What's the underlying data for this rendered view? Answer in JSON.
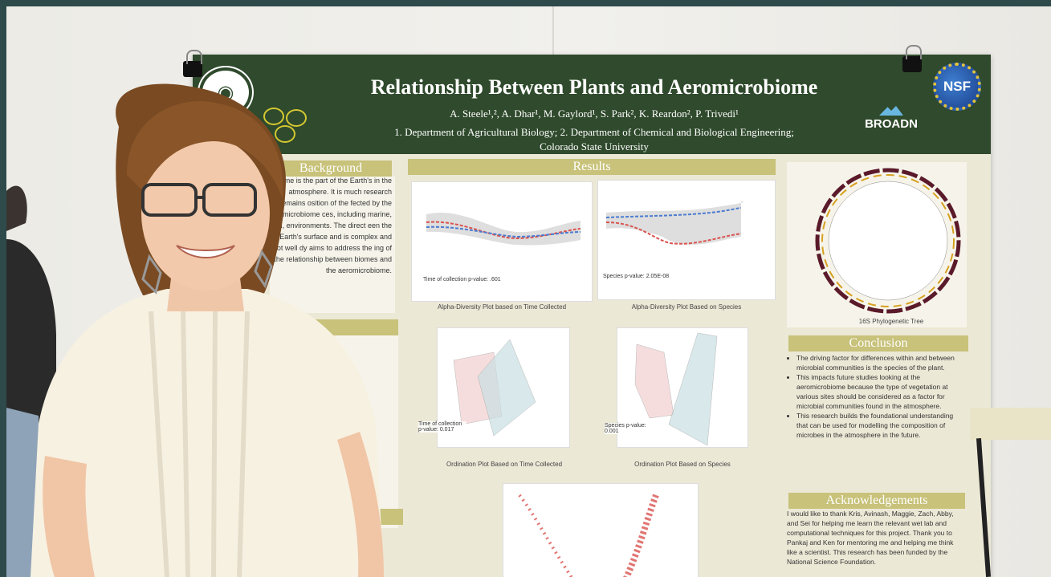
{
  "poster": {
    "title": "Relationship Between Plants and Aeromicrobiome",
    "authors": "A. Steele¹,², A. Dhar¹, M. Gaylord¹, S. Park², K. Reardon², P. Trivedi¹",
    "affiliation_line1": "1. Department of Agricultural Biology; 2. Department of Chemical and Biological Engineering;",
    "affiliation_line2": "Colorado State University",
    "logo_right": "BROADN",
    "logo_nsf": "NSF",
    "sections": {
      "background": "Background",
      "results": "Results",
      "conclusion": "Conclusion",
      "acknowledgements": "Acknowledgements"
    },
    "background_text": "me is the part of the Earth's in the atmosphere. It is much research remains osition of the fected by the microbiome ces, including marine, soil, environments. The direct een the Earth's surface and is complex and not well dy aims to address the ing of the relationship between biomes and the aeromicrobiome.",
    "plots": {
      "alpha_time_caption": "Alpha-Diversity Plot based on Time Collected",
      "alpha_time_note": "Time of collection p-value: .601",
      "alpha_species_caption": "Alpha-Diversity Plot Based on Species",
      "alpha_species_note": "Species p-value: 2.05E-08",
      "ord_time_caption": "Ordination Plot Based on Time Collected",
      "ord_time_note": "Time of collection p-value: 0.017",
      "ord_species_caption": "Ordination Plot Based on Species",
      "ord_species_note": "Species p-value: 0.001",
      "tree_caption": "16S Phylogenetic Tree"
    },
    "conclusion_items": [
      "The driving factor for differences within and between microbial communities is the species of the plant.",
      "This impacts future studies looking at the aeromicrobiome because the type of vegetation at various sites should be considered as a factor for microbial communities found in the atmosphere.",
      "This research builds the foundational understanding that can be used for modelling the composition of microbes in the atmosphere in the future."
    ],
    "acknowledgements_text": "I would like to thank Kris, Avinash, Maggie, Zach, Abby, and Sei for helping me learn the relevant wet lab and computational techniques for this project. Thank you to Pankaj and Ken for mentoring me and helping me think like a scientist. This research has been funded by the National Science Foundation."
  },
  "colors": {
    "banner": "#2f4a2c",
    "section_bar": "#c8c27a",
    "board": "#ece8d6",
    "series_red": "#d9534f",
    "series_blue": "#4a7bd0"
  }
}
